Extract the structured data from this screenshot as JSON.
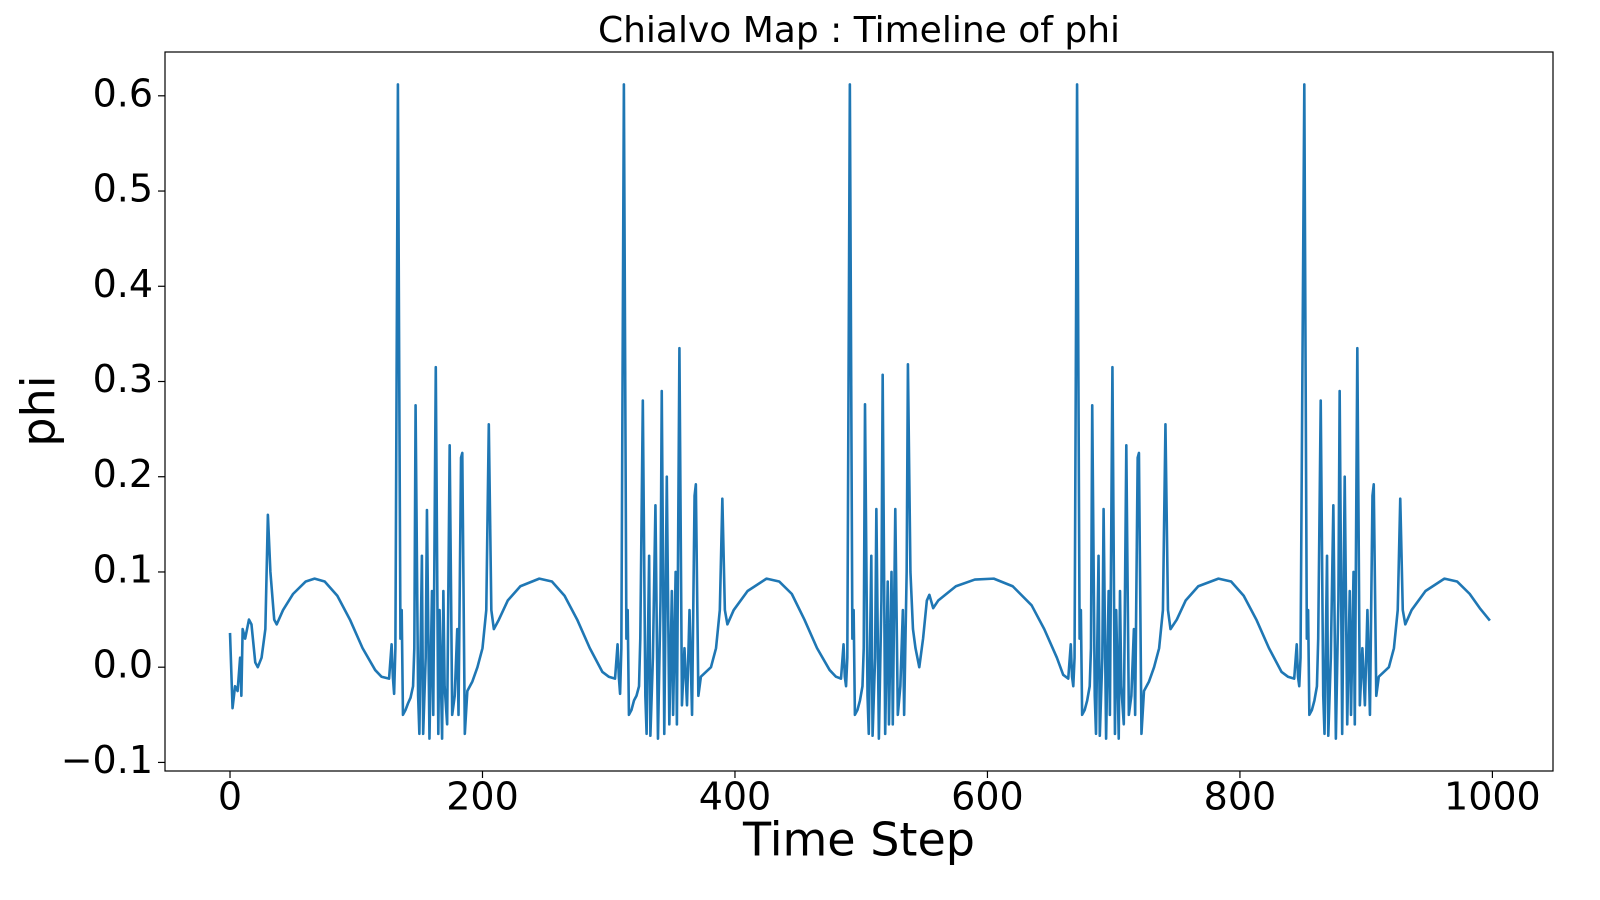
{
  "chart_data": {
    "type": "line",
    "title": "Chialvo Map : Timeline of phi",
    "x_label": "Time Step",
    "y_label": "phi",
    "x": [
      0,
      2,
      4,
      6,
      8,
      9,
      10,
      12,
      15,
      17,
      20,
      22,
      25,
      28,
      30,
      32,
      35,
      37,
      42,
      50,
      60,
      67,
      75,
      85,
      95,
      105,
      115,
      120,
      126,
      128,
      129,
      130,
      131,
      133,
      135,
      136,
      137,
      139,
      141,
      143,
      145,
      146,
      147,
      149,
      150,
      152,
      153,
      155,
      156,
      158,
      160,
      161,
      163,
      165,
      166,
      168,
      169,
      170,
      172,
      174,
      176,
      178,
      180,
      181,
      183,
      184,
      186,
      188,
      192,
      196,
      200,
      203,
      205,
      207,
      209,
      213,
      220,
      230,
      245,
      255,
      265,
      275,
      285,
      295,
      300,
      305,
      307,
      308,
      309,
      310,
      312,
      314,
      315,
      316,
      318,
      320,
      322,
      324,
      325,
      327,
      329,
      330,
      332,
      333,
      335,
      337,
      339,
      341,
      342,
      344,
      346,
      348,
      350,
      351,
      353,
      354,
      356,
      358,
      360,
      362,
      364,
      366,
      368,
      369,
      371,
      373,
      377,
      381,
      385,
      388,
      390,
      392,
      394,
      399,
      410,
      425,
      435,
      445,
      455,
      465,
      475,
      480,
      484,
      486,
      487,
      488,
      489,
      491,
      493,
      494,
      495,
      497,
      499,
      501,
      502,
      503,
      505,
      506,
      508,
      509,
      511,
      512,
      514,
      516,
      517,
      519,
      521,
      522,
      524,
      525,
      527,
      529,
      531,
      533,
      534,
      536,
      537,
      539,
      541,
      543,
      546,
      549,
      552,
      554,
      557,
      561,
      575,
      590,
      605,
      620,
      635,
      645,
      655,
      660,
      664,
      666,
      667,
      668,
      669,
      671,
      673,
      674,
      675,
      677,
      679,
      681,
      682,
      683,
      685,
      686,
      688,
      689,
      691,
      692,
      694,
      696,
      697,
      699,
      701,
      702,
      704,
      705,
      706,
      708,
      710,
      712,
      714,
      716,
      717,
      719,
      720,
      722,
      724,
      728,
      732,
      736,
      739,
      741,
      743,
      745,
      750,
      757,
      767,
      783,
      793,
      803,
      813,
      823,
      833,
      838,
      843,
      845,
      846,
      847,
      848,
      851,
      853,
      854,
      855,
      857,
      859,
      861,
      862,
      864,
      866,
      867,
      869,
      870,
      872,
      874,
      876,
      878,
      879,
      881,
      883,
      885,
      887,
      888,
      890,
      891,
      893,
      895,
      897,
      899,
      901,
      903,
      905,
      906,
      908,
      910,
      914,
      918,
      922,
      925,
      927,
      929,
      931,
      936,
      947,
      962,
      972,
      982,
      990,
      998
    ],
    "series": [
      {
        "color": "#1f77b4",
        "values": [
          0.036,
          -0.043,
          -0.02,
          -0.025,
          0.01,
          -0.03,
          0.04,
          0.03,
          0.05,
          0.045,
          0.005,
          0,
          0.01,
          0.04,
          0.16,
          0.1,
          0.05,
          0.045,
          0.06,
          0.077,
          0.09,
          0.093,
          0.09,
          0.075,
          0.05,
          0.02,
          -0.003,
          -0.01,
          -0.012,
          0.024,
          -0.01,
          -0.028,
          0.02,
          0.612,
          0.03,
          0.06,
          -0.05,
          -0.045,
          -0.038,
          -0.032,
          -0.02,
          0.02,
          0.275,
          -0.03,
          -0.07,
          0.117,
          -0.07,
          0.01,
          0.165,
          -0.075,
          0.08,
          -0.05,
          0.315,
          -0.07,
          0.06,
          -0.075,
          0.08,
          -0.02,
          -0.06,
          0.233,
          -0.05,
          -0.03,
          0.04,
          -0.05,
          0.22,
          0.225,
          -0.07,
          -0.025,
          -0.015,
          0,
          0.02,
          0.06,
          0.255,
          0.06,
          0.04,
          0.05,
          0.07,
          0.085,
          0.093,
          0.09,
          0.075,
          0.05,
          0.02,
          -0.005,
          -0.01,
          -0.012,
          0.024,
          -0.01,
          -0.028,
          0.02,
          0.612,
          0.03,
          0.06,
          -0.05,
          -0.045,
          -0.035,
          -0.03,
          -0.02,
          0.03,
          0.28,
          -0.03,
          -0.07,
          0.117,
          -0.072,
          0.01,
          0.17,
          -0.075,
          0.07,
          0.29,
          -0.07,
          0.2,
          -0.06,
          0.08,
          -0.05,
          0.1,
          -0.06,
          0.335,
          -0.04,
          0.02,
          -0.04,
          0.06,
          -0.05,
          0.18,
          0.192,
          -0.03,
          -0.01,
          -0.005,
          0,
          0.02,
          0.06,
          0.177,
          0.06,
          0.045,
          0.06,
          0.08,
          0.093,
          0.09,
          0.077,
          0.05,
          0.02,
          -0.003,
          -0.01,
          -0.012,
          0.024,
          -0.01,
          -0.02,
          0.01,
          0.612,
          0.03,
          0.06,
          -0.05,
          -0.045,
          -0.035,
          -0.02,
          0.02,
          0.276,
          -0.03,
          -0.07,
          0.117,
          -0.072,
          0.01,
          0.166,
          -0.075,
          0.07,
          0.307,
          -0.07,
          0.09,
          -0.06,
          0.1,
          -0.06,
          0.166,
          -0.05,
          -0.02,
          0.06,
          -0.05,
          0.1,
          0.318,
          0.1,
          0.04,
          0.02,
          0,
          0.03,
          0.07,
          0.076,
          0.062,
          0.07,
          0.085,
          0.092,
          0.093,
          0.085,
          0.065,
          0.04,
          0.01,
          -0.008,
          -0.012,
          0.024,
          -0.01,
          -0.02,
          0.01,
          0.612,
          0.03,
          0.06,
          -0.05,
          -0.045,
          -0.035,
          -0.02,
          0.02,
          0.275,
          -0.03,
          -0.07,
          0.117,
          -0.072,
          0.01,
          0.166,
          -0.075,
          0.08,
          -0.05,
          0.315,
          -0.07,
          0.06,
          -0.075,
          0.08,
          -0.02,
          -0.06,
          0.233,
          -0.05,
          -0.03,
          0.04,
          -0.05,
          0.22,
          0.225,
          -0.07,
          -0.025,
          -0.015,
          0,
          0.02,
          0.06,
          0.255,
          0.06,
          0.04,
          0.05,
          0.07,
          0.085,
          0.093,
          0.09,
          0.075,
          0.05,
          0.02,
          -0.005,
          -0.01,
          -0.012,
          0.024,
          -0.01,
          -0.02,
          0.01,
          0.612,
          0.03,
          0.06,
          -0.05,
          -0.045,
          -0.035,
          -0.02,
          0.03,
          0.28,
          -0.03,
          -0.07,
          0.117,
          -0.072,
          0.01,
          0.17,
          -0.075,
          0.07,
          0.29,
          -0.07,
          0.2,
          -0.06,
          0.08,
          -0.05,
          0.1,
          -0.06,
          0.335,
          -0.04,
          0.02,
          -0.04,
          0.06,
          -0.05,
          0.18,
          0.192,
          -0.03,
          -0.01,
          -0.005,
          0,
          0.02,
          0.06,
          0.177,
          0.06,
          0.045,
          0.06,
          0.08,
          0.093,
          0.09,
          0.077,
          0.062,
          0.049
        ]
      }
    ],
    "xlim": [
      -51.5,
      1048
    ],
    "ylim": [
      -0.109,
      0.646
    ],
    "xticks": [
      0,
      200,
      400,
      600,
      800,
      1000
    ],
    "yticks": [
      {
        "value": -0.1,
        "label": "−0.1"
      },
      {
        "value": 0,
        "label": "0.0"
      },
      0.1,
      0.2,
      0.3,
      0.4,
      0.5,
      0.6
    ]
  }
}
